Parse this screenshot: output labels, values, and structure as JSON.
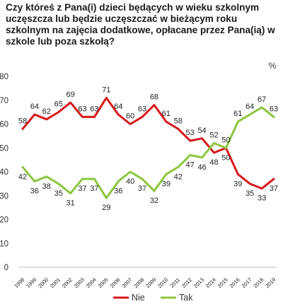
{
  "chart_data": {
    "type": "line",
    "title": "Czy któreś z Pana(i) dzieci będących w wieku szkolnym uczęszcza lub będzie uczęszczać w bieżącym roku szkolnym na zajęcia dodatkowe, opłacane przez Pana(ią) w szkole lub poza szkołą?",
    "unit_label": "%",
    "x": [
      "1998",
      "1999",
      "2000",
      "2001",
      "2002",
      "2003",
      "2004",
      "2005",
      "2006",
      "2007",
      "2008",
      "2009",
      "2010",
      "2011",
      "2012",
      "2013",
      "2014",
      "2015",
      "2016",
      "2017",
      "2018",
      "2019"
    ],
    "yticks": [
      "80",
      "70",
      "60",
      "50",
      "40",
      "30",
      "20",
      "10",
      "0"
    ],
    "ylim": [
      0,
      80
    ],
    "grid": false,
    "legend_position": "bottom",
    "series": [
      {
        "name": "Nie",
        "color": "#d7191c",
        "values": [
          58,
          64,
          62,
          65,
          69,
          63,
          63,
          71,
          64,
          60,
          63,
          68,
          61,
          58,
          53,
          54,
          48,
          50,
          39,
          35,
          33,
          37
        ]
      },
      {
        "name": "Tak",
        "color": "#8cc63f",
        "values": [
          42,
          36,
          38,
          35,
          31,
          37,
          37,
          29,
          36,
          40,
          37,
          32,
          39,
          42,
          47,
          46,
          52,
          50,
          61,
          64,
          67,
          63
        ]
      }
    ]
  }
}
